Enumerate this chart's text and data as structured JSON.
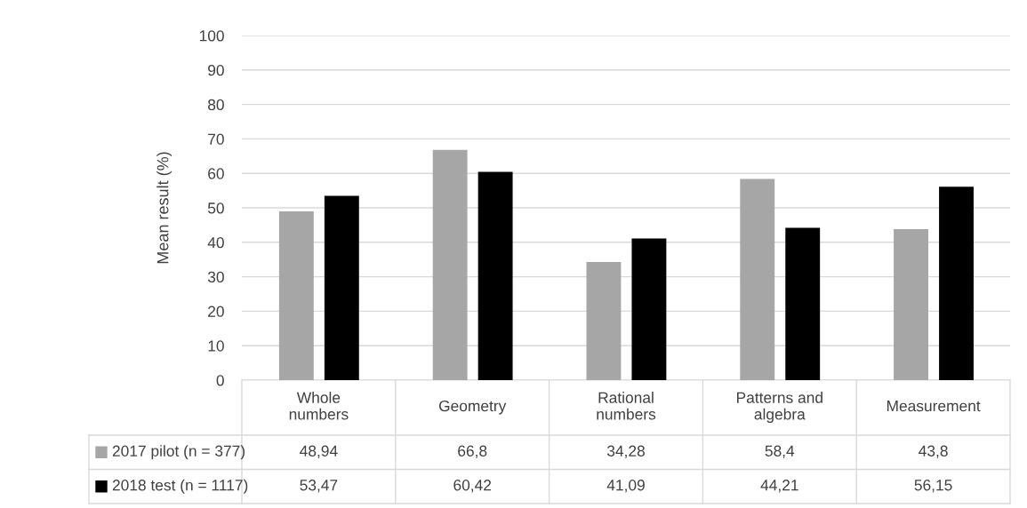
{
  "chart_data": {
    "type": "bar",
    "ylabel": "Mean result (%)",
    "categories": [
      "Whole\nnumbers",
      "Geometry",
      "Rational\nnumbers",
      "Patterns and\nalgebra",
      "Measurement"
    ],
    "series": [
      {
        "name": "2017 pilot (n = 377)",
        "color": "#a6a6a6",
        "values": [
          48.94,
          66.8,
          34.28,
          58.4,
          43.8
        ],
        "value_labels": [
          "48,94",
          "66,8",
          "34,28",
          "58,4",
          "43,8"
        ]
      },
      {
        "name": "2018 test (n = 1117)",
        "color": "#000000",
        "values": [
          53.47,
          60.42,
          41.09,
          44.21,
          56.15
        ],
        "value_labels": [
          "53,47",
          "60,42",
          "41,09",
          "44,21",
          "56,15"
        ]
      }
    ],
    "ylim": [
      0,
      100
    ],
    "yticks": [
      0,
      10,
      20,
      30,
      40,
      50,
      60,
      70,
      80,
      90,
      100
    ],
    "grid": "y",
    "legend": "bottom"
  }
}
